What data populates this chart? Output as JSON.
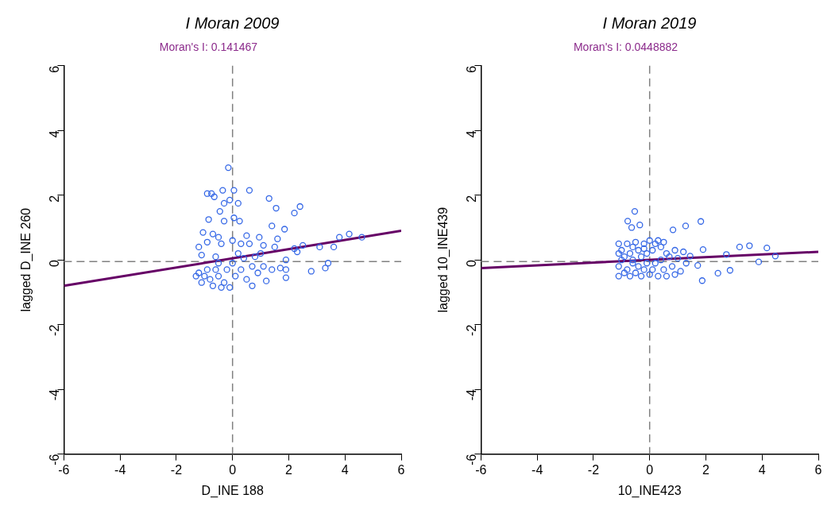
{
  "chart_data": [
    {
      "type": "scatter",
      "title": "I Moran 2009",
      "subtitle": "Moran's I: 0.141467",
      "xlabel": "D_INE 188",
      "ylabel": "lagged D_INE 260",
      "xlim": [
        -6,
        6
      ],
      "ylim": [
        -6,
        6
      ],
      "xticks": [
        -6,
        -4,
        -2,
        0,
        2,
        4,
        6
      ],
      "yticks": [
        -6,
        -4,
        -2,
        0,
        2,
        4,
        6
      ],
      "ref_lines": [
        {
          "axis": "x",
          "value": 0,
          "color": "#808080",
          "line_style": "dashed"
        },
        {
          "axis": "y",
          "value": -0.05,
          "color": "#808080",
          "line_style": "dashed"
        }
      ],
      "series": [
        {
          "type": "scatter",
          "marker": "circle",
          "color": "#3366e6",
          "x": [
            -0.15,
            -0.9,
            -0.75,
            -0.65,
            -0.35,
            0.05,
            0.6,
            -0.1,
            0.2,
            -0.45,
            -0.3,
            1.3,
            1.55,
            2.2,
            2.4,
            -0.85,
            -0.3,
            0.05,
            0.25,
            1.4,
            1.85,
            -1.05,
            -0.7,
            -0.5,
            0,
            0.5,
            0.95,
            1.6,
            -1.2,
            -0.9,
            -0.4,
            0.3,
            0.6,
            1.1,
            1.5,
            2.2,
            2.5,
            3.1,
            3.6,
            3.8,
            4.15,
            4.6,
            -1.1,
            -0.6,
            0.2,
            0.8,
            1.9,
            -1.2,
            -1,
            -0.8,
            -1.1,
            -0.7,
            -0.5,
            -0.3,
            -0.2,
            -0.9,
            -0.5,
            0.1,
            0.3,
            0.5,
            0.7,
            0.9,
            1.1,
            1.2,
            1.4,
            1.7,
            1.9,
            1.9,
            2.3,
            2.8,
            3.3,
            3.4,
            -0.1,
            -0.4,
            0,
            0.4,
            -1.3,
            -0.6,
            0.7,
            1
          ],
          "values": [
            2.85,
            2.05,
            2.05,
            1.95,
            2.15,
            2.15,
            2.15,
            1.85,
            1.75,
            1.5,
            1.75,
            1.9,
            1.6,
            1.45,
            1.65,
            1.25,
            1.2,
            1.3,
            1.2,
            1.05,
            0.95,
            0.85,
            0.8,
            0.7,
            0.6,
            0.75,
            0.7,
            0.65,
            0.4,
            0.55,
            0.5,
            0.5,
            0.5,
            0.45,
            0.4,
            0.35,
            0.45,
            0.4,
            0.4,
            0.7,
            0.8,
            0.7,
            0.15,
            0.1,
            0.2,
            0.1,
            0,
            -0.4,
            -0.5,
            -0.6,
            -0.7,
            -0.8,
            -0.5,
            -0.7,
            -0.3,
            -0.3,
            -0.1,
            -0.5,
            -0.3,
            -0.6,
            -0.8,
            -0.4,
            -0.2,
            -0.65,
            -0.3,
            -0.25,
            -0.3,
            -0.55,
            0.25,
            -0.35,
            -0.25,
            -0.1,
            -0.85,
            -0.85,
            -0.1,
            0.05,
            -0.5,
            -0.3,
            -0.2,
            0.2
          ]
        },
        {
          "type": "line",
          "color": "#660066",
          "x": [
            -6,
            6
          ],
          "values": [
            -0.8,
            0.9
          ]
        }
      ]
    },
    {
      "type": "scatter",
      "title": "I Moran 2019",
      "subtitle": "Moran's I: 0.0448882",
      "xlabel": "10_INE423",
      "ylabel": "lagged 10_INE439",
      "xlim": [
        -6,
        6
      ],
      "ylim": [
        -6,
        6
      ],
      "xticks": [
        -6,
        -4,
        -2,
        0,
        2,
        4,
        6
      ],
      "yticks": [
        -6,
        -4,
        -2,
        0,
        2,
        4,
        6
      ],
      "ref_lines": [
        {
          "axis": "x",
          "value": 0,
          "color": "#808080",
          "line_style": "dashed"
        },
        {
          "axis": "y",
          "value": -0.05,
          "color": "#808080",
          "line_style": "dashed"
        }
      ],
      "series": [
        {
          "type": "scatter",
          "marker": "circle",
          "color": "#3366e6",
          "x": [
            -0.53,
            -0.78,
            -0.64,
            -0.35,
            0.83,
            1.28,
            1.82,
            3.2,
            3.55,
            4.17,
            4.47,
            3.88,
            2.73,
            2.43,
            2.86,
            1.87,
            1.9,
            1.44,
            1.71,
            -1.1,
            -1.1,
            -1.1,
            -1.1,
            -1,
            -0.9,
            -0.9,
            -0.8,
            -0.8,
            -0.7,
            -0.7,
            -0.6,
            -0.6,
            -0.5,
            -0.5,
            -0.4,
            -0.4,
            -0.3,
            -0.3,
            -0.2,
            -0.2,
            -0.1,
            -0.1,
            0,
            0,
            0.1,
            0.1,
            0.2,
            0.2,
            0.3,
            0.4,
            0.4,
            0.5,
            0.6,
            0.6,
            0.7,
            0.8,
            0.9,
            1,
            1.1,
            1.2,
            1.3,
            -1,
            -0.6,
            -0.2,
            0.3,
            0.5,
            0.9
          ],
          "values": [
            1.5,
            1.2,
            1,
            1.08,
            0.93,
            1.05,
            1.19,
            0.4,
            0.44,
            0.37,
            0.12,
            -0.06,
            0.17,
            -0.41,
            -0.32,
            -0.64,
            0.32,
            0.12,
            -0.17,
            0.5,
            0.2,
            -0.2,
            -0.5,
            0.3,
            -0.4,
            0.1,
            0.5,
            -0.3,
            0.2,
            -0.5,
            0.4,
            -0.1,
            0.55,
            -0.4,
            0.3,
            -0.2,
            0.1,
            -0.5,
            0.5,
            -0.3,
            0.2,
            -0.1,
            0.6,
            -0.45,
            0.3,
            -0.3,
            0.5,
            -0.1,
            -0.5,
            0.4,
            0,
            -0.3,
            0.2,
            -0.5,
            0.1,
            -0.2,
            0.3,
            0.05,
            -0.35,
            0.25,
            -0.1,
            0,
            0,
            0.35,
            0.6,
            0.55,
            -0.45
          ]
        },
        {
          "type": "line",
          "color": "#660066",
          "x": [
            -6,
            6
          ],
          "values": [
            -0.25,
            0.25
          ]
        }
      ]
    }
  ]
}
